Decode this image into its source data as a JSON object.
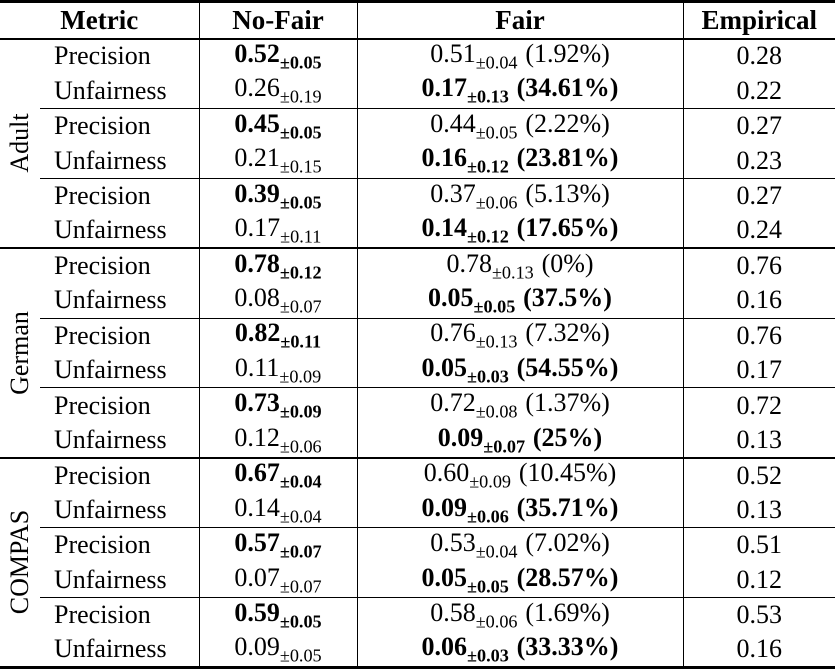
{
  "colors": {
    "text": "#000000",
    "background": "#ffffff",
    "border": "#000000"
  },
  "table": {
    "headers": {
      "metric": "Metric",
      "no_fair": "No-Fair",
      "fair": "Fair",
      "empirical": "Empirical"
    },
    "groups": [
      {
        "dataset": "Adult",
        "rows": [
          {
            "metric": "Precision",
            "no_fair": {
              "value": "0.52",
              "sub": "±0.05"
            },
            "fair": {
              "value": "0.51",
              "sub": "±0.04",
              "pct": "(1.92%)"
            },
            "empirical": "0.28"
          },
          {
            "metric": "Unfairness",
            "no_fair": {
              "value": "0.26",
              "sub": "±0.19"
            },
            "fair": {
              "value": "0.17",
              "sub": "±0.13",
              "pct": "(34.61%)"
            },
            "empirical": "0.22"
          },
          {
            "metric": "Precision",
            "no_fair": {
              "value": "0.45",
              "sub": "±0.05"
            },
            "fair": {
              "value": "0.44",
              "sub": "±0.05",
              "pct": "(2.22%)"
            },
            "empirical": "0.27"
          },
          {
            "metric": "Unfairness",
            "no_fair": {
              "value": "0.21",
              "sub": "±0.15"
            },
            "fair": {
              "value": "0.16",
              "sub": "±0.12",
              "pct": "(23.81%)"
            },
            "empirical": "0.23"
          },
          {
            "metric": "Precision",
            "no_fair": {
              "value": "0.39",
              "sub": "±0.05"
            },
            "fair": {
              "value": "0.37",
              "sub": "±0.06",
              "pct": "(5.13%)"
            },
            "empirical": "0.27"
          },
          {
            "metric": "Unfairness",
            "no_fair": {
              "value": "0.17",
              "sub": "±0.11"
            },
            "fair": {
              "value": "0.14",
              "sub": "±0.12",
              "pct": "(17.65%)"
            },
            "empirical": "0.24"
          }
        ]
      },
      {
        "dataset": "German",
        "rows": [
          {
            "metric": "Precision",
            "no_fair": {
              "value": "0.78",
              "sub": "±0.12"
            },
            "fair": {
              "value": "0.78",
              "sub": "±0.13",
              "pct": "(0%)"
            },
            "empirical": "0.76"
          },
          {
            "metric": "Unfairness",
            "no_fair": {
              "value": "0.08",
              "sub": "±0.07"
            },
            "fair": {
              "value": "0.05",
              "sub": "±0.05",
              "pct": "(37.5%)"
            },
            "empirical": "0.16"
          },
          {
            "metric": "Precision",
            "no_fair": {
              "value": "0.82",
              "sub": "±0.11"
            },
            "fair": {
              "value": "0.76",
              "sub": "±0.13",
              "pct": "(7.32%)"
            },
            "empirical": "0.76"
          },
          {
            "metric": "Unfairness",
            "no_fair": {
              "value": "0.11",
              "sub": "±0.09"
            },
            "fair": {
              "value": "0.05",
              "sub": "±0.03",
              "pct": "(54.55%)"
            },
            "empirical": "0.17"
          },
          {
            "metric": "Precision",
            "no_fair": {
              "value": "0.73",
              "sub": "±0.09"
            },
            "fair": {
              "value": "0.72",
              "sub": "±0.08",
              "pct": "(1.37%)"
            },
            "empirical": "0.72"
          },
          {
            "metric": "Unfairness",
            "no_fair": {
              "value": "0.12",
              "sub": "±0.06"
            },
            "fair": {
              "value": "0.09",
              "sub": "±0.07",
              "pct": "(25%)"
            },
            "empirical": "0.13"
          }
        ]
      },
      {
        "dataset": "COMPAS",
        "rows": [
          {
            "metric": "Precision",
            "no_fair": {
              "value": "0.67",
              "sub": "±0.04"
            },
            "fair": {
              "value": "0.60",
              "sub": "±0.09",
              "pct": "(10.45%)"
            },
            "empirical": "0.52"
          },
          {
            "metric": "Unfairness",
            "no_fair": {
              "value": "0.14",
              "sub": "±0.04"
            },
            "fair": {
              "value": "0.09",
              "sub": "±0.06",
              "pct": "(35.71%)"
            },
            "empirical": "0.13"
          },
          {
            "metric": "Precision",
            "no_fair": {
              "value": "0.57",
              "sub": "±0.07"
            },
            "fair": {
              "value": "0.53",
              "sub": "±0.04",
              "pct": "(7.02%)"
            },
            "empirical": "0.51"
          },
          {
            "metric": "Unfairness",
            "no_fair": {
              "value": "0.07",
              "sub": "±0.07"
            },
            "fair": {
              "value": "0.05",
              "sub": "±0.05",
              "pct": "(28.57%)"
            },
            "empirical": "0.12"
          },
          {
            "metric": "Precision",
            "no_fair": {
              "value": "0.59",
              "sub": "±0.05"
            },
            "fair": {
              "value": "0.58",
              "sub": "±0.06",
              "pct": "(1.69%)"
            },
            "empirical": "0.53"
          },
          {
            "metric": "Unfairness",
            "no_fair": {
              "value": "0.09",
              "sub": "±0.05"
            },
            "fair": {
              "value": "0.06",
              "sub": "±0.03",
              "pct": "(33.33%)"
            },
            "empirical": "0.16"
          }
        ]
      }
    ]
  }
}
